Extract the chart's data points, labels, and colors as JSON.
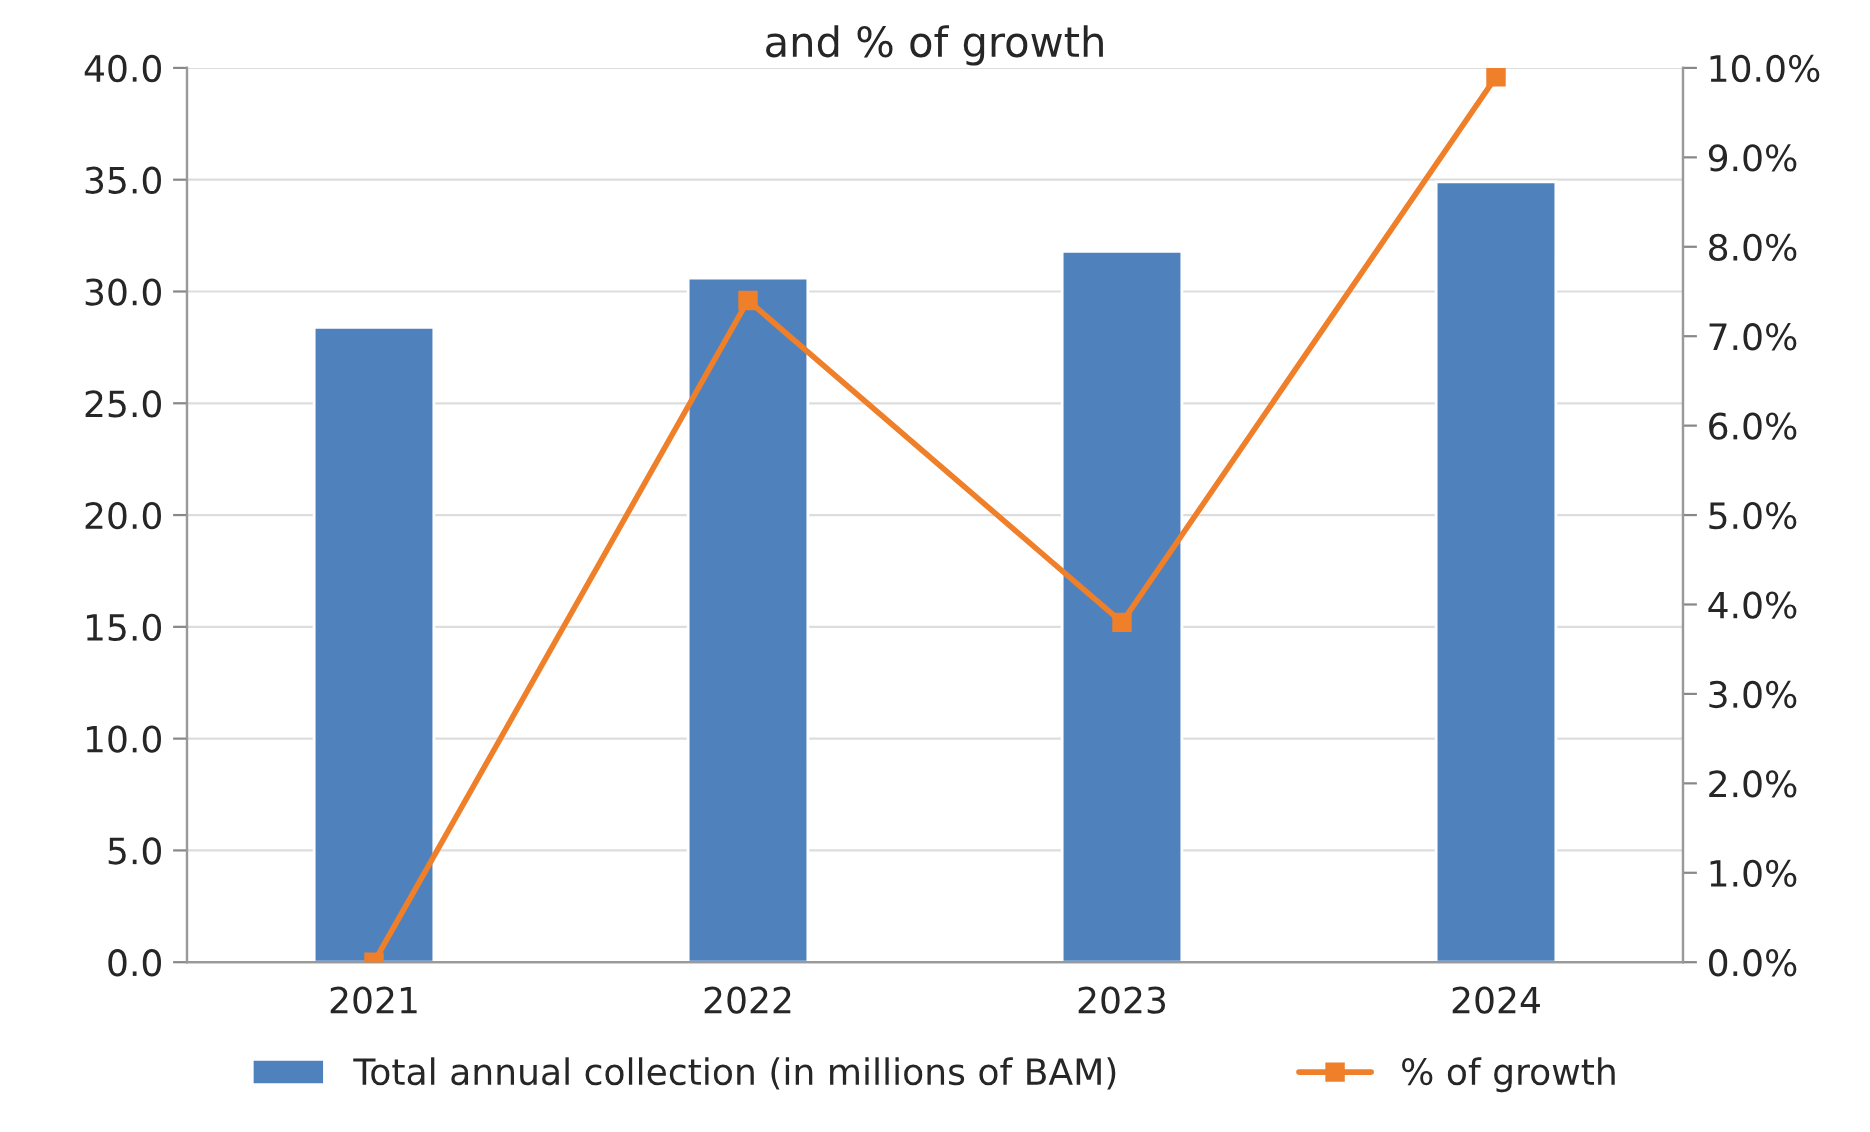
{
  "chart_data": {
    "type": "bar",
    "title": "and % of growth",
    "categories": [
      "2021",
      "2022",
      "2023",
      "2024"
    ],
    "series": [
      {
        "name": "Total annual collection (in millions of BAM)",
        "color": "#4f81bd",
        "values": [
          28.4,
          30.6,
          31.8,
          34.9
        ]
      },
      {
        "name": "% of growth",
        "type": "line",
        "axis": "y2",
        "color": "#f07f2a",
        "values": [
          0.0,
          7.4,
          3.8,
          9.9
        ],
        "marker": "square",
        "line_style": "solid"
      }
    ],
    "ylim": [
      0,
      40
    ],
    "yticks": [
      {
        "value": 0,
        "label": "0.0"
      },
      {
        "value": 5,
        "label": "5.0"
      },
      {
        "value": 10,
        "label": "10.0"
      },
      {
        "value": 15,
        "label": "15.0"
      },
      {
        "value": 20,
        "label": "20.0"
      },
      {
        "value": 25,
        "label": "25.0"
      },
      {
        "value": 30,
        "label": "30.0"
      },
      {
        "value": 35,
        "label": "35.0"
      },
      {
        "value": 40,
        "label": "40.0"
      }
    ],
    "y2lim": [
      0,
      10
    ],
    "y2ticks": [
      {
        "value": 0,
        "label": "0.0%"
      },
      {
        "value": 1,
        "label": "1.0%"
      },
      {
        "value": 2,
        "label": "2.0%"
      },
      {
        "value": 3,
        "label": "3.0%"
      },
      {
        "value": 4,
        "label": "4.0%"
      },
      {
        "value": 5,
        "label": "5.0%"
      },
      {
        "value": 6,
        "label": "6.0%"
      },
      {
        "value": 7,
        "label": "7.0%"
      },
      {
        "value": 8,
        "label": "8.0%"
      },
      {
        "value": 9,
        "label": "9.0%"
      },
      {
        "value": 10,
        "label": "10.0%"
      }
    ],
    "grid": "y",
    "legend": "bottom"
  }
}
